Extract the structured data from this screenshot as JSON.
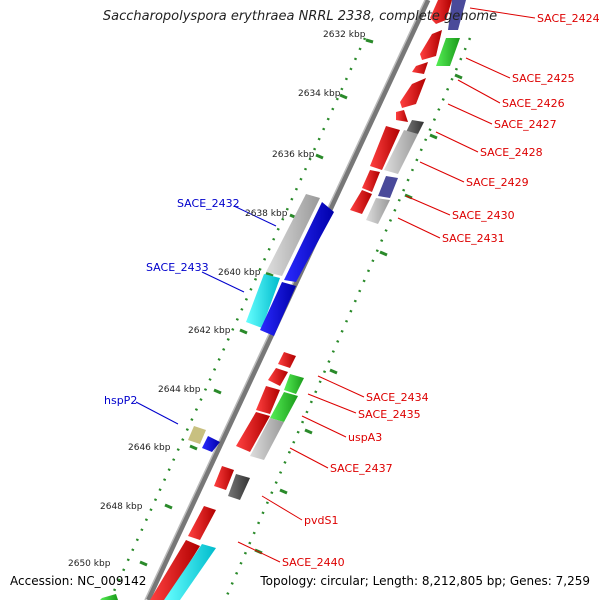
{
  "title": "Saccharopolyspora erythraea NRRL 2338, complete genome",
  "footer": {
    "accession": "Accession: NC_009142",
    "topology": "Topology: circular; Length: 8,212,805 bp; Genes: 7,259"
  },
  "scale_labels": [
    "2632 kbp",
    "2634 kbp",
    "2636 kbp",
    "2638 kbp",
    "2640 kbp",
    "2642 kbp",
    "2644 kbp",
    "2646 kbp",
    "2648 kbp",
    "2650 kbp"
  ],
  "gene_labels_right": [
    "SACE_2424",
    "SACE_2425",
    "SACE_2426",
    "SACE_2427",
    "SACE_2428",
    "SACE_2429",
    "SACE_2430",
    "SACE_2431",
    "SACE_2434",
    "SACE_2435",
    "uspA3",
    "SACE_2437",
    "pvdS1",
    "SACE_2440"
  ],
  "gene_labels_left": [
    "SACE_2432",
    "SACE_2433",
    "hspP2"
  ],
  "colors": {
    "forward_cds": "#ff0000",
    "reverse_cds": "#0000ee",
    "rna": "#00ffff",
    "green_feature": "#33cc33",
    "gray_feature": "#bbbbbb",
    "dark_gray_feature": "#666666",
    "purple_feature": "#4a4a9a",
    "olive_feature": "#c8c080",
    "label_right": "#dd0000",
    "label_left": "#0000cc",
    "backbone": "#888888",
    "tick": "#2a8a2a"
  }
}
